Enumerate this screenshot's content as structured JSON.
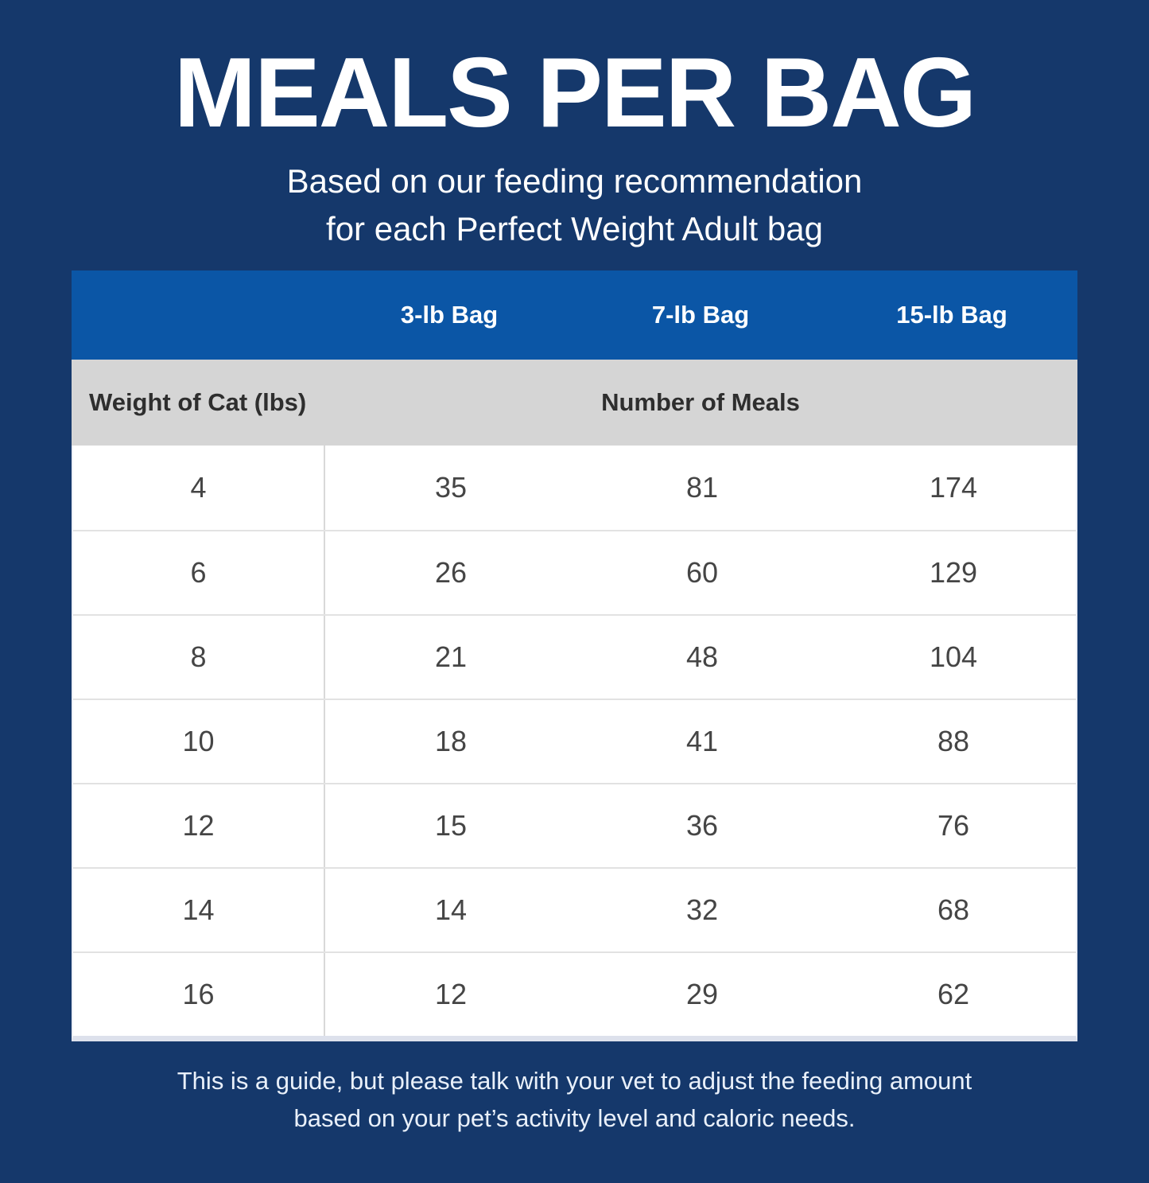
{
  "colors": {
    "background_navy": "#15386b",
    "table_header_blue": "#0b56a6",
    "subheader_gray": "#d5d5d5",
    "row_white": "#ffffff",
    "title_text": "#ffffff",
    "body_text": "#2e2e2e"
  },
  "header": {
    "title": "MEALS PER BAG",
    "subtitle_line1": "Based on our feeding recommendation",
    "subtitle_line2": "for each Perfect Weight Adult bag"
  },
  "table": {
    "bag_headers": [
      "3-lb Bag",
      "7-lb Bag",
      "15-lb Bag"
    ],
    "weight_header": "Weight of Cat (lbs)",
    "meals_header": "Number of Meals",
    "rows": [
      [
        "4",
        "35",
        "81",
        "174"
      ],
      [
        "6",
        "26",
        "60",
        "129"
      ],
      [
        "8",
        "21",
        "48",
        "104"
      ],
      [
        "10",
        "18",
        "41",
        "88"
      ],
      [
        "12",
        "15",
        "36",
        "76"
      ],
      [
        "14",
        "14",
        "32",
        "68"
      ],
      [
        "16",
        "12",
        "29",
        "62"
      ]
    ]
  },
  "footer": {
    "line1": "This is a guide, but please talk with your vet to adjust the feeding amount",
    "line2": "based on your pet’s activity level and caloric needs."
  },
  "chart_data": {
    "type": "table",
    "title": "MEALS PER BAG",
    "subtitle": "Based on our feeding recommendation for each Perfect Weight Adult bag",
    "columns": [
      "Weight of Cat (lbs)",
      "3-lb Bag",
      "7-lb Bag",
      "15-lb Bag"
    ],
    "value_group_label": "Number of Meals",
    "rows": [
      [
        4,
        35,
        81,
        174
      ],
      [
        6,
        26,
        60,
        129
      ],
      [
        8,
        21,
        48,
        104
      ],
      [
        10,
        18,
        41,
        88
      ],
      [
        12,
        15,
        36,
        76
      ],
      [
        14,
        14,
        32,
        68
      ],
      [
        16,
        12,
        29,
        62
      ]
    ],
    "note": "This is a guide, but please talk with your vet to adjust the feeding amount based on your pet’s activity level and caloric needs."
  }
}
